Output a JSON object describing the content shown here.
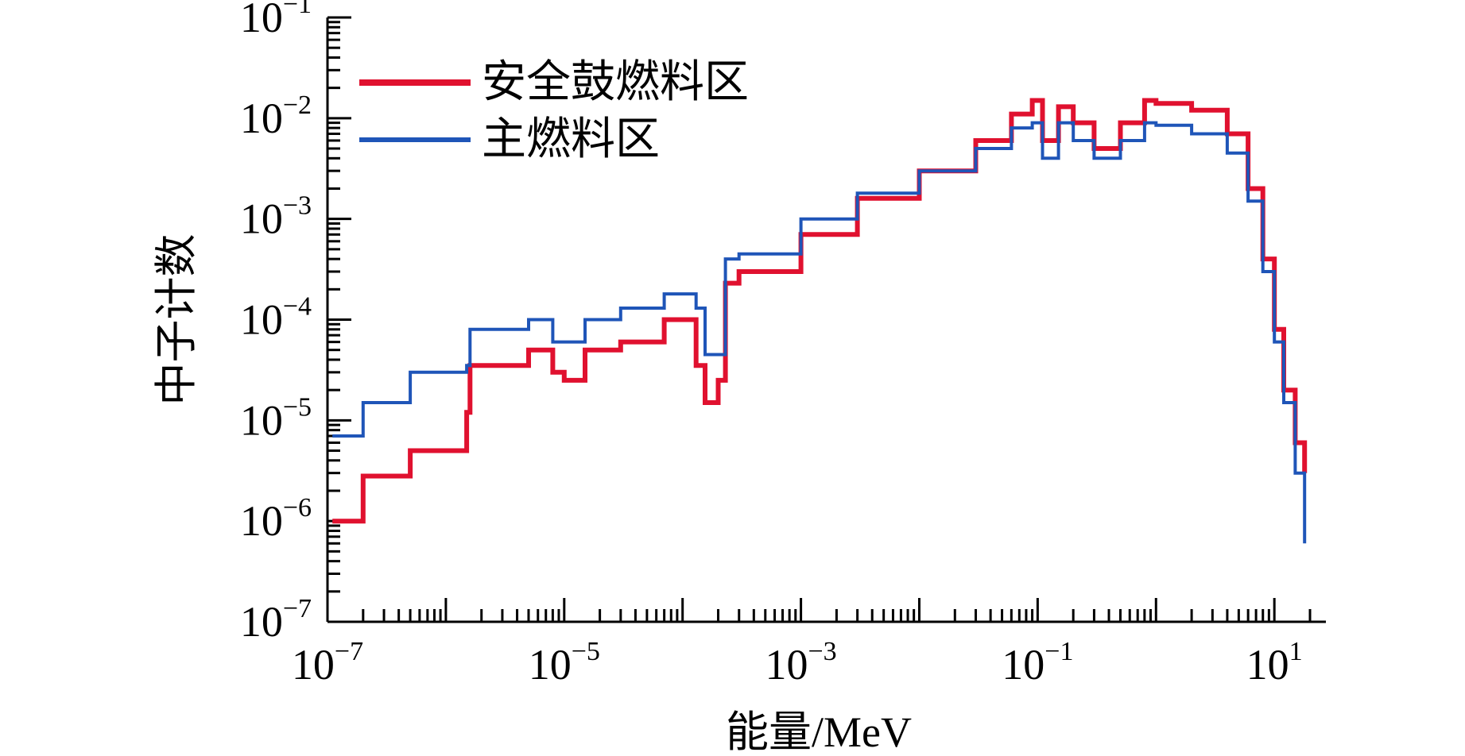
{
  "chart_data": {
    "type": "line",
    "xscale": "log",
    "yscale": "log",
    "xlim": [
      1e-07,
      20
    ],
    "ylim": [
      1e-07,
      0.1
    ],
    "xlabel": "能量/MeV",
    "ylabel": "中子计数",
    "x_ticks": [
      {
        "value": 1e-07,
        "base": "10",
        "exp": "−7"
      },
      {
        "value": 1e-05,
        "base": "10",
        "exp": "−5"
      },
      {
        "value": 0.001,
        "base": "10",
        "exp": "−3"
      },
      {
        "value": 0.1,
        "base": "10",
        "exp": "−1"
      },
      {
        "value": 10,
        "base": "10",
        "exp": "1"
      }
    ],
    "y_ticks": [
      {
        "value": 1e-07,
        "base": "10",
        "exp": "−7"
      },
      {
        "value": 1e-06,
        "base": "10",
        "exp": "−6"
      },
      {
        "value": 1e-05,
        "base": "10",
        "exp": "−5"
      },
      {
        "value": 0.0001,
        "base": "10",
        "exp": "−4"
      },
      {
        "value": 0.001,
        "base": "10",
        "exp": "−3"
      },
      {
        "value": 0.01,
        "base": "10",
        "exp": "−2"
      },
      {
        "value": 0.1,
        "base": "10",
        "exp": "−1"
      }
    ],
    "legend": "top-left",
    "series": [
      {
        "name": "安全鼓燃料区",
        "color": "#e0112f",
        "x": [
          1.1e-07,
          2e-07,
          5e-07,
          1.5e-06,
          1.6e-06,
          5e-06,
          8e-06,
          1e-05,
          1.5e-05,
          3e-05,
          7e-05,
          0.00013,
          0.000155,
          0.0002,
          0.00023,
          0.0003,
          0.001,
          0.003,
          0.01,
          0.03,
          0.06,
          0.09,
          0.11,
          0.15,
          0.2,
          0.3,
          0.5,
          0.8,
          1,
          2,
          4,
          6,
          8,
          10,
          12,
          15,
          18
        ],
        "y": [
          1e-06,
          2.8e-06,
          5e-06,
          1.2e-05,
          3.5e-05,
          5e-05,
          3e-05,
          2.5e-05,
          5e-05,
          6e-05,
          0.0001,
          3.5e-05,
          1.5e-05,
          2.5e-05,
          0.00023,
          0.0003,
          0.0007,
          0.0016,
          0.003,
          0.006,
          0.011,
          0.015,
          0.006,
          0.013,
          0.009,
          0.005,
          0.009,
          0.015,
          0.014,
          0.012,
          0.007,
          0.002,
          0.0004,
          8e-05,
          2e-05,
          6e-06,
          3e-06
        ]
      },
      {
        "name": "主燃料区",
        "color": "#1f55b8",
        "x": [
          1.1e-07,
          2e-07,
          5e-07,
          1.5e-06,
          1.6e-06,
          5e-06,
          8e-06,
          1e-05,
          1.5e-05,
          3e-05,
          7e-05,
          0.00013,
          0.000155,
          0.0002,
          0.00023,
          0.0003,
          0.001,
          0.003,
          0.01,
          0.03,
          0.06,
          0.09,
          0.11,
          0.15,
          0.2,
          0.3,
          0.5,
          0.8,
          1,
          2,
          4,
          6,
          8,
          10,
          12,
          15,
          18
        ],
        "y": [
          7e-06,
          1.5e-05,
          3e-05,
          3.5e-05,
          8e-05,
          0.0001,
          6e-05,
          6e-05,
          0.0001,
          0.00013,
          0.00018,
          0.00013,
          4.5e-05,
          4.5e-05,
          0.0004,
          0.00045,
          0.001,
          0.0018,
          0.003,
          0.005,
          0.008,
          0.009,
          0.004,
          0.009,
          0.006,
          0.004,
          0.006,
          0.009,
          0.0085,
          0.007,
          0.0045,
          0.0015,
          0.0003,
          6e-05,
          1.5e-05,
          3e-06,
          6e-07
        ]
      }
    ]
  }
}
